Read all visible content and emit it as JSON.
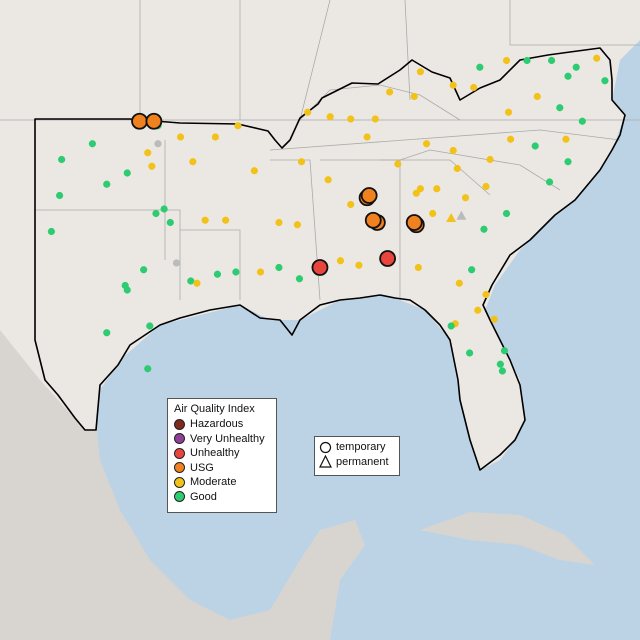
{
  "colors": {
    "water": "#bcd3e6",
    "land": "#ebe8e4",
    "mexico_land": "#d8d4cf",
    "state_line": "#aaaaaa",
    "region_outline": "#000000",
    "hazardous": "#7e2a1e",
    "very_unhealthy": "#8f3f97",
    "unhealthy": "#e8463c",
    "usg": "#f0811f",
    "moderate": "#f2c21a",
    "good": "#2ecc71",
    "unknown": "#bbbbbb"
  },
  "aqi_legend": {
    "title": "Air Quality Index",
    "items": [
      {
        "label": "Hazardous",
        "color": "#7e2a1e"
      },
      {
        "label": "Very Unhealthy",
        "color": "#8f3f97"
      },
      {
        "label": "Unhealthy",
        "color": "#e8463c"
      },
      {
        "label": "USG",
        "color": "#f0811f"
      },
      {
        "label": "Moderate",
        "color": "#f2c21a"
      },
      {
        "label": "Good",
        "color": "#2ecc71"
      }
    ]
  },
  "type_legend": {
    "items": [
      {
        "label": "temporary",
        "shape": "circle"
      },
      {
        "label": "permanent",
        "shape": "triangle"
      }
    ]
  },
  "monitors": [
    {
      "lon": -100.2,
      "lat": 35.9,
      "aqi": "good"
    },
    {
      "lon": -101.7,
      "lat": 35.2,
      "aqi": "good"
    },
    {
      "lon": -97.5,
      "lat": 35.5,
      "aqi": "moderate"
    },
    {
      "lon": -97.3,
      "lat": 34.9,
      "aqi": "moderate"
    },
    {
      "lon": -95.9,
      "lat": 36.2,
      "aqi": "moderate"
    },
    {
      "lon": -95.3,
      "lat": 35.1,
      "aqi": "moderate"
    },
    {
      "lon": -98.5,
      "lat": 34.6,
      "aqi": "good"
    },
    {
      "lon": -99.5,
      "lat": 34.1,
      "aqi": "good"
    },
    {
      "lon": -97.0,
      "lat": 36.7,
      "aqi": "good"
    },
    {
      "lon": -96.7,
      "lat": 33.0,
      "aqi": "good"
    },
    {
      "lon": -97.1,
      "lat": 32.8,
      "aqi": "good"
    },
    {
      "lon": -96.4,
      "lat": 32.4,
      "aqi": "good"
    },
    {
      "lon": -94.7,
      "lat": 32.5,
      "aqi": "moderate"
    },
    {
      "lon": -93.7,
      "lat": 32.5,
      "aqi": "moderate"
    },
    {
      "lon": -101.8,
      "lat": 33.6,
      "aqi": "good"
    },
    {
      "lon": -102.2,
      "lat": 32.0,
      "aqi": "good"
    },
    {
      "lon": -106.4,
      "lat": 31.8,
      "aqi": "good"
    },
    {
      "lon": -98.5,
      "lat": 29.4,
      "aqi": "good"
    },
    {
      "lon": -98.6,
      "lat": 29.6,
      "aqi": "good"
    },
    {
      "lon": -97.7,
      "lat": 30.3,
      "aqi": "good"
    },
    {
      "lon": -95.4,
      "lat": 29.8,
      "aqi": "good"
    },
    {
      "lon": -95.1,
      "lat": 29.7,
      "aqi": "moderate"
    },
    {
      "lon": -94.1,
      "lat": 30.1,
      "aqi": "good"
    },
    {
      "lon": -97.4,
      "lat": 27.8,
      "aqi": "good"
    },
    {
      "lon": -99.5,
      "lat": 27.5,
      "aqi": "good"
    },
    {
      "lon": -97.5,
      "lat": 25.9,
      "aqi": "good"
    },
    {
      "lon": -93.2,
      "lat": 30.2,
      "aqi": "good"
    },
    {
      "lon": -91.1,
      "lat": 30.4,
      "aqi": "good"
    },
    {
      "lon": -90.1,
      "lat": 29.9,
      "aqi": "good"
    },
    {
      "lon": -91.1,
      "lat": 32.4,
      "aqi": "moderate"
    },
    {
      "lon": -92.0,
      "lat": 30.2,
      "aqi": "moderate"
    },
    {
      "lon": -89.1,
      "lat": 30.4,
      "aqi": "unhealthy"
    },
    {
      "lon": -90.2,
      "lat": 32.3,
      "aqi": "moderate"
    },
    {
      "lon": -88.7,
      "lat": 34.3,
      "aqi": "moderate"
    },
    {
      "lon": -87.6,
      "lat": 33.2,
      "aqi": "moderate"
    },
    {
      "lon": -86.8,
      "lat": 33.5,
      "aqi": "usg"
    },
    {
      "lon": -86.7,
      "lat": 33.6,
      "aqi": "usg"
    },
    {
      "lon": -86.3,
      "lat": 32.4,
      "aqi": "usg"
    },
    {
      "lon": -86.5,
      "lat": 32.5,
      "aqi": "usg"
    },
    {
      "lon": -84.4,
      "lat": 32.3,
      "aqi": "usg"
    },
    {
      "lon": -84.5,
      "lat": 32.4,
      "aqi": "usg"
    },
    {
      "lon": -85.8,
      "lat": 30.8,
      "aqi": "unhealthy"
    },
    {
      "lon": -88.1,
      "lat": 30.7,
      "aqi": "moderate"
    },
    {
      "lon": -87.2,
      "lat": 30.5,
      "aqi": "moderate"
    },
    {
      "lon": -84.3,
      "lat": 30.4,
      "aqi": "moderate"
    },
    {
      "lon": -82.3,
      "lat": 29.7,
      "aqi": "moderate"
    },
    {
      "lon": -81.7,
      "lat": 30.3,
      "aqi": "good"
    },
    {
      "lon": -81.4,
      "lat": 28.5,
      "aqi": "moderate"
    },
    {
      "lon": -82.5,
      "lat": 27.9,
      "aqi": "moderate"
    },
    {
      "lon": -82.7,
      "lat": 27.8,
      "aqi": "good"
    },
    {
      "lon": -81.8,
      "lat": 26.6,
      "aqi": "good"
    },
    {
      "lon": -80.2,
      "lat": 25.8,
      "aqi": "good"
    },
    {
      "lon": -80.3,
      "lat": 26.1,
      "aqi": "good"
    },
    {
      "lon": -80.1,
      "lat": 26.7,
      "aqi": "good"
    },
    {
      "lon": -80.6,
      "lat": 28.1,
      "aqi": "moderate"
    },
    {
      "lon": -81.0,
      "lat": 29.2,
      "aqi": "moderate"
    },
    {
      "lon": -84.4,
      "lat": 33.7,
      "aqi": "moderate"
    },
    {
      "lon": -84.2,
      "lat": 33.9,
      "aqi": "moderate"
    },
    {
      "lon": -83.4,
      "lat": 33.9,
      "aqi": "moderate"
    },
    {
      "lon": -82.0,
      "lat": 33.5,
      "aqi": "moderate"
    },
    {
      "lon": -81.1,
      "lat": 32.1,
      "aqi": "good"
    },
    {
      "lon": -83.6,
      "lat": 32.8,
      "aqi": "moderate"
    },
    {
      "lon": -81.0,
      "lat": 34.0,
      "aqi": "moderate"
    },
    {
      "lon": -80.0,
      "lat": 32.8,
      "aqi": "good"
    },
    {
      "lon": -82.4,
      "lat": 34.8,
      "aqi": "moderate"
    },
    {
      "lon": -80.8,
      "lat": 35.2,
      "aqi": "moderate"
    },
    {
      "lon": -79.8,
      "lat": 36.1,
      "aqi": "moderate"
    },
    {
      "lon": -78.6,
      "lat": 35.8,
      "aqi": "good"
    },
    {
      "lon": -77.9,
      "lat": 34.2,
      "aqi": "good"
    },
    {
      "lon": -77.0,
      "lat": 35.1,
      "aqi": "good"
    },
    {
      "lon": -82.6,
      "lat": 35.6,
      "aqi": "moderate"
    },
    {
      "lon": -83.9,
      "lat": 35.9,
      "aqi": "moderate"
    },
    {
      "lon": -85.3,
      "lat": 35.0,
      "aqi": "moderate"
    },
    {
      "lon": -86.8,
      "lat": 36.2,
      "aqi": "moderate"
    },
    {
      "lon": -90.0,
      "lat": 35.1,
      "aqi": "moderate"
    },
    {
      "lon": -92.3,
      "lat": 34.7,
      "aqi": "moderate"
    },
    {
      "lon": -94.2,
      "lat": 36.2,
      "aqi": "moderate"
    },
    {
      "lon": -93.1,
      "lat": 36.7,
      "aqi": "moderate"
    },
    {
      "lon": -89.7,
      "lat": 37.3,
      "aqi": "moderate"
    },
    {
      "lon": -88.6,
      "lat": 37.1,
      "aqi": "moderate"
    },
    {
      "lon": -87.6,
      "lat": 37.0,
      "aqi": "moderate"
    },
    {
      "lon": -86.4,
      "lat": 37.0,
      "aqi": "moderate"
    },
    {
      "lon": -85.7,
      "lat": 38.2,
      "aqi": "moderate"
    },
    {
      "lon": -84.5,
      "lat": 38.0,
      "aqi": "moderate"
    },
    {
      "lon": -84.2,
      "lat": 39.1,
      "aqi": "moderate"
    },
    {
      "lon": -82.6,
      "lat": 38.5,
      "aqi": "moderate"
    },
    {
      "lon": -81.6,
      "lat": 38.4,
      "aqi": "moderate"
    },
    {
      "lon": -80.0,
      "lat": 39.6,
      "aqi": "moderate"
    },
    {
      "lon": -79.9,
      "lat": 37.3,
      "aqi": "moderate"
    },
    {
      "lon": -78.5,
      "lat": 38.0,
      "aqi": "moderate"
    },
    {
      "lon": -77.4,
      "lat": 37.5,
      "aqi": "good"
    },
    {
      "lon": -76.3,
      "lat": 36.9,
      "aqi": "good"
    },
    {
      "lon": -77.0,
      "lat": 38.9,
      "aqi": "good"
    },
    {
      "lon": -76.6,
      "lat": 39.3,
      "aqi": "good"
    },
    {
      "lon": -75.6,
      "lat": 39.7,
      "aqi": "moderate"
    },
    {
      "lon": -75.2,
      "lat": 38.7,
      "aqi": "good"
    },
    {
      "lon": -77.8,
      "lat": 39.6,
      "aqi": "good"
    },
    {
      "lon": -79.0,
      "lat": 39.6,
      "aqi": "good"
    },
    {
      "lon": -81.3,
      "lat": 39.3,
      "aqi": "good"
    },
    {
      "lon": -77.1,
      "lat": 36.1,
      "aqi": "moderate"
    },
    {
      "lon": -97.9,
      "lat": 36.9,
      "aqi": "usg"
    },
    {
      "lon": -97.2,
      "lat": 36.9,
      "aqi": "usg"
    },
    {
      "lon": -97.0,
      "lat": 35.9,
      "aqi": "unknown"
    },
    {
      "lon": -96.1,
      "lat": 30.6,
      "aqi": "unknown"
    },
    {
      "lon": -82.7,
      "lat": 32.6,
      "aqi": "moderate",
      "type": "permanent"
    },
    {
      "lon": -82.2,
      "lat": 32.7,
      "aqi": "unknown",
      "type": "permanent"
    }
  ]
}
